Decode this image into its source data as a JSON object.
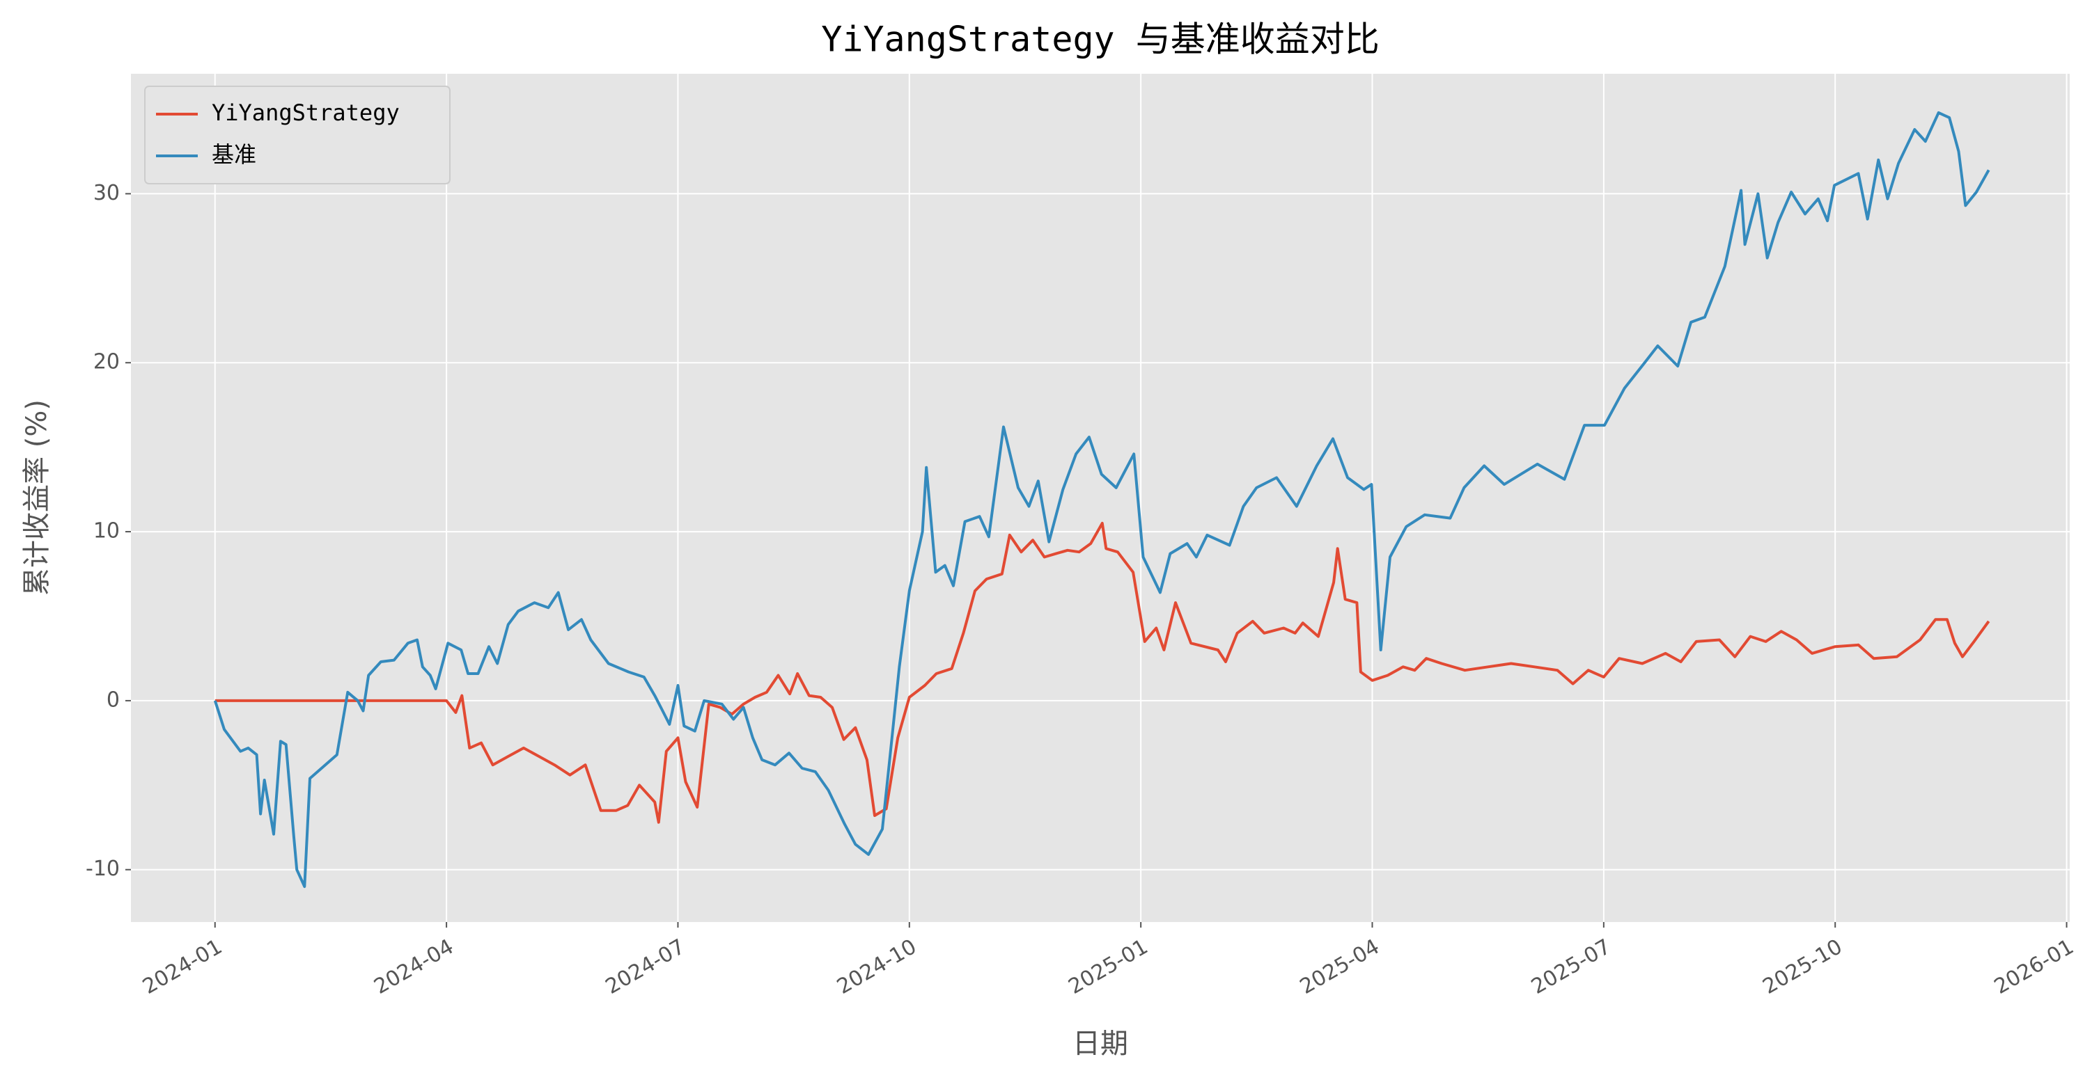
{
  "chart_data": {
    "type": "line",
    "title": "YiYangStrategy 与基准收益对比",
    "x_label": "日期",
    "y_label": "累计收益率 (%)",
    "xlim": [
      -1.09,
      24.04
    ],
    "xticks": [
      {
        "value": 0,
        "label": "2024-01"
      },
      {
        "value": 3,
        "label": "2024-04"
      },
      {
        "value": 6,
        "label": "2024-07"
      },
      {
        "value": 9,
        "label": "2024-10"
      },
      {
        "value": 12,
        "label": "2025-01"
      },
      {
        "value": 15,
        "label": "2025-04"
      },
      {
        "value": 18,
        "label": "2025-07"
      },
      {
        "value": 21,
        "label": "2025-10"
      },
      {
        "value": 24,
        "label": "2026-01"
      }
    ],
    "ylim": [
      -13.1,
      37.1
    ],
    "yticks": [
      -10,
      0,
      10,
      20,
      30
    ],
    "grid": true,
    "legend": "upper-left",
    "series": [
      {
        "name": "YiYangStrategy",
        "color": "#e24a33",
        "x": [
          0,
          3.0,
          3.12,
          3.2,
          3.3,
          3.45,
          3.6,
          3.8,
          4.0,
          4.2,
          4.4,
          4.6,
          4.8,
          5.0,
          5.2,
          5.35,
          5.5,
          5.7,
          5.75,
          5.85,
          6.0,
          6.1,
          6.25,
          6.4,
          6.55,
          6.7,
          6.85,
          7.0,
          7.15,
          7.3,
          7.45,
          7.55,
          7.7,
          7.85,
          8.0,
          8.15,
          8.3,
          8.45,
          8.55,
          8.7,
          8.85,
          9.0,
          9.2,
          9.35,
          9.55,
          9.7,
          9.85,
          10.0,
          10.2,
          10.3,
          10.45,
          10.6,
          10.75,
          10.9,
          11.05,
          11.2,
          11.35,
          11.5,
          11.55,
          11.7,
          11.9,
          12.05,
          12.2,
          12.3,
          12.45,
          12.65,
          13.0,
          13.1,
          13.25,
          13.45,
          13.6,
          13.85,
          14.0,
          14.1,
          14.3,
          14.5,
          14.55,
          14.65,
          14.8,
          14.85,
          15.0,
          15.2,
          15.4,
          15.55,
          15.7,
          15.9,
          16.2,
          16.5,
          16.8,
          17.1,
          17.4,
          17.6,
          17.8,
          18.0,
          18.2,
          18.5,
          18.8,
          19.0,
          19.2,
          19.5,
          19.7,
          19.9,
          20.1,
          20.3,
          20.5,
          20.7,
          21.0,
          21.3,
          21.5,
          21.8,
          22.1,
          22.3,
          22.45,
          22.55,
          22.65,
          22.8,
          22.99
        ],
        "values": [
          0,
          0,
          -0.7,
          0.3,
          -2.8,
          -2.5,
          -3.8,
          -3.3,
          -2.8,
          -3.3,
          -3.8,
          -4.4,
          -3.8,
          -6.5,
          -6.5,
          -6.2,
          -5,
          -6,
          -7.2,
          -3,
          -2.2,
          -4.8,
          -6.3,
          -0.2,
          -0.4,
          -0.8,
          -0.2,
          0.2,
          0.5,
          1.5,
          0.4,
          1.6,
          0.3,
          0.2,
          -0.4,
          -2.3,
          -1.6,
          -3.5,
          -6.8,
          -6.4,
          -2.2,
          0.2,
          0.9,
          1.6,
          1.9,
          4,
          6.5,
          7.2,
          7.5,
          9.8,
          8.8,
          9.5,
          8.5,
          8.7,
          8.9,
          8.8,
          9.3,
          10.5,
          9,
          8.8,
          7.6,
          3.5,
          4.3,
          3,
          5.8,
          3.4,
          3,
          2.3,
          4,
          4.7,
          4,
          4.3,
          4,
          4.6,
          3.8,
          7,
          9,
          6,
          5.8,
          1.7,
          1.2,
          1.5,
          2,
          1.8,
          2.5,
          2.2,
          1.8,
          2,
          2.2,
          2,
          1.8,
          1,
          1.8,
          1.4,
          2.5,
          2.2,
          2.8,
          2.3,
          3.5,
          3.6,
          2.6,
          3.8,
          3.5,
          4.1,
          3.6,
          2.8,
          3.2,
          3.3,
          2.5,
          2.6,
          3.6,
          4.8,
          4.8,
          3.4,
          2.6,
          3.5,
          4.7
        ]
      },
      {
        "name": "基准",
        "color": "#348abd",
        "x": [
          0,
          0.12,
          0.33,
          0.43,
          0.54,
          0.59,
          0.64,
          0.76,
          0.85,
          0.92,
          1.02,
          1.06,
          1.16,
          1.23,
          1.58,
          1.72,
          1.85,
          1.92,
          1.99,
          2.15,
          2.32,
          2.5,
          2.62,
          2.69,
          2.79,
          2.86,
          3.02,
          3.19,
          3.28,
          3.41,
          3.55,
          3.66,
          3.8,
          3.93,
          4.14,
          4.32,
          4.45,
          4.58,
          4.75,
          4.87,
          5.1,
          5.36,
          5.56,
          5.7,
          5.79,
          5.89,
          6.0,
          6.08,
          6.22,
          6.34,
          6.57,
          6.72,
          6.85,
          6.97,
          7.09,
          7.26,
          7.44,
          7.61,
          7.78,
          7.95,
          8.16,
          8.3,
          8.47,
          8.65,
          8.77,
          8.87,
          9.0,
          9.17,
          9.22,
          9.34,
          9.46,
          9.57,
          9.72,
          9.91,
          10.03,
          10.22,
          10.41,
          10.55,
          10.67,
          10.81,
          10.99,
          11.16,
          11.33,
          11.49,
          11.68,
          11.91,
          12.03,
          12.25,
          12.38,
          12.6,
          12.72,
          12.86,
          13.15,
          13.33,
          13.5,
          13.76,
          14.02,
          14.28,
          14.49,
          14.68,
          14.89,
          14.99,
          15.11,
          15.23,
          15.44,
          15.68,
          16.01,
          16.19,
          16.45,
          16.71,
          17.14,
          17.49,
          17.75,
          18.01,
          18.27,
          18.53,
          18.7,
          18.96,
          19.13,
          19.31,
          19.57,
          19.78,
          19.83,
          20.0,
          20.12,
          20.26,
          20.43,
          20.61,
          20.78,
          20.9,
          20.99,
          21.3,
          21.42,
          21.56,
          21.68,
          21.82,
          22.03,
          22.17,
          22.34,
          22.48,
          22.6,
          22.69,
          22.83,
          22.99
        ],
        "values": [
          0,
          -1.7,
          -3,
          -2.8,
          -3.2,
          -6.7,
          -4.7,
          -7.9,
          -2.4,
          -2.6,
          -8,
          -10,
          -11,
          -4.6,
          -3.2,
          0.5,
          0,
          -0.6,
          1.5,
          2.3,
          2.4,
          3.4,
          3.6,
          2,
          1.5,
          0.7,
          3.4,
          3,
          1.6,
          1.6,
          3.2,
          2.2,
          4.5,
          5.3,
          5.8,
          5.5,
          6.4,
          4.2,
          4.8,
          3.6,
          2.2,
          1.7,
          1.4,
          0.3,
          -0.5,
          -1.4,
          0.9,
          -1.5,
          -1.8,
          0,
          -0.2,
          -1.1,
          -0.4,
          -2.2,
          -3.5,
          -3.8,
          -3.1,
          -4,
          -4.2,
          -5.3,
          -7.3,
          -8.5,
          -9.1,
          -7.6,
          -2.4,
          2,
          6.5,
          10,
          13.8,
          7.6,
          8,
          6.8,
          10.6,
          10.9,
          9.7,
          16.2,
          12.6,
          11.5,
          13,
          9.4,
          12.5,
          14.6,
          15.6,
          13.4,
          12.6,
          14.6,
          8.5,
          6.4,
          8.7,
          9.3,
          8.5,
          9.8,
          9.2,
          11.5,
          12.6,
          13.2,
          11.5,
          13.9,
          15.5,
          13.2,
          12.5,
          12.8,
          3,
          8.5,
          10.3,
          11,
          10.8,
          12.6,
          13.9,
          12.8,
          14,
          13.1,
          16.3,
          16.3,
          18.5,
          20,
          21,
          19.8,
          22.4,
          22.7,
          25.7,
          30.2,
          27,
          30,
          26.2,
          28.3,
          30.1,
          28.8,
          29.7,
          28.4,
          30.5,
          31.2,
          28.5,
          32,
          29.7,
          31.8,
          33.8,
          33.1,
          34.8,
          34.5,
          32.5,
          29.3,
          30.1,
          31.4
        ]
      }
    ]
  }
}
